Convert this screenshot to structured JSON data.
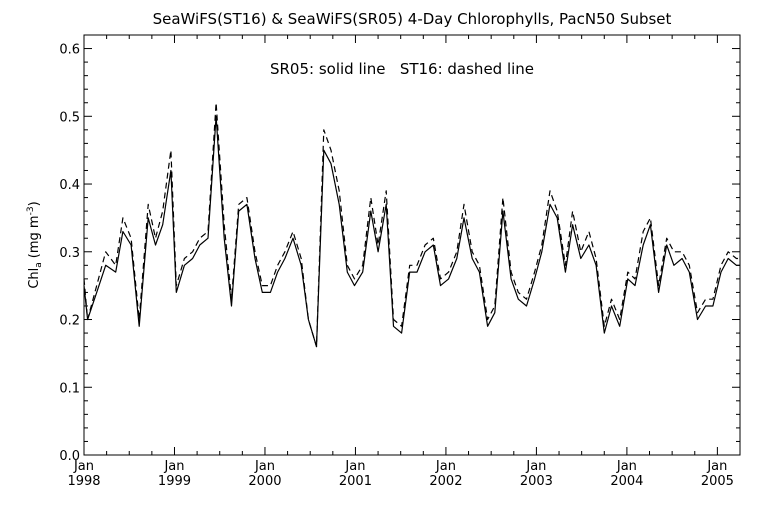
{
  "chart_data": {
    "type": "line",
    "title": "SeaWiFS(ST16) & SeaWiFS(SR05) 4-Day Chlorophylls, PacN50 Subset",
    "annotation": "SR05: solid line   ST16: dashed line",
    "ylabel_main": "Chl",
    "ylabel_sub": "a",
    "ylabel_units": "(mg m",
    "ylabel_exp": "-3",
    "ylabel_close": ")",
    "xlabel": "",
    "ylim": [
      0.0,
      0.62
    ],
    "xlim": [
      1998.0,
      2005.25
    ],
    "grid": false,
    "y_ticks": [
      0.0,
      0.1,
      0.2,
      0.3,
      0.4,
      0.5,
      0.6
    ],
    "y_tick_labels": [
      "0.0",
      "0.1",
      "0.2",
      "0.3",
      "0.4",
      "0.5",
      "0.6"
    ],
    "x_ticks": [
      1998,
      1999,
      2000,
      2001,
      2002,
      2003,
      2004,
      2005
    ],
    "x_tick_labels_month": [
      "Jan",
      "Jan",
      "Jan",
      "Jan",
      "Jan",
      "Jan",
      "Jan",
      "Jan"
    ],
    "x_tick_labels_year": [
      "1998",
      "1999",
      "2000",
      "2001",
      "2002",
      "2003",
      "2004",
      "2005"
    ],
    "series": [
      {
        "name": "SR05",
        "style": "solid",
        "x": [
          1998.0,
          1998.04,
          1998.14,
          1998.24,
          1998.35,
          1998.43,
          1998.52,
          1998.61,
          1998.71,
          1998.79,
          1998.87,
          1998.96,
          1999.02,
          1999.11,
          1999.2,
          1999.28,
          1999.37,
          1999.46,
          1999.55,
          1999.63,
          1999.71,
          1999.8,
          1999.89,
          1999.97,
          2000.06,
          2000.14,
          2000.22,
          2000.31,
          2000.4,
          2000.48,
          2000.57,
          2000.65,
          2000.73,
          2000.82,
          2000.91,
          2000.99,
          2001.08,
          2001.17,
          2001.25,
          2001.34,
          2001.42,
          2001.51,
          2001.6,
          2001.68,
          2001.77,
          2001.86,
          2001.94,
          2002.03,
          2002.12,
          2002.2,
          2002.29,
          2002.37,
          2002.46,
          2002.54,
          2002.63,
          2002.72,
          2002.8,
          2002.89,
          2002.98,
          2003.06,
          2003.15,
          2003.23,
          2003.32,
          2003.4,
          2003.49,
          2003.58,
          2003.66,
          2003.75,
          2003.83,
          2003.92,
          2004.01,
          2004.09,
          2004.18,
          2004.26,
          2004.35,
          2004.44,
          2004.52,
          2004.61,
          2004.69,
          2004.78,
          2004.87,
          2004.95,
          2005.04,
          2005.12,
          2005.21,
          2005.25
        ],
        "y": [
          0.25,
          0.2,
          0.24,
          0.28,
          0.27,
          0.33,
          0.31,
          0.19,
          0.35,
          0.31,
          0.34,
          0.42,
          0.24,
          0.28,
          0.29,
          0.31,
          0.32,
          0.5,
          0.32,
          0.22,
          0.36,
          0.37,
          0.29,
          0.24,
          0.24,
          0.27,
          0.29,
          0.32,
          0.28,
          0.2,
          0.16,
          0.45,
          0.43,
          0.37,
          0.27,
          0.25,
          0.27,
          0.36,
          0.3,
          0.37,
          0.19,
          0.18,
          0.27,
          0.27,
          0.3,
          0.31,
          0.25,
          0.26,
          0.29,
          0.35,
          0.29,
          0.27,
          0.19,
          0.21,
          0.36,
          0.26,
          0.23,
          0.22,
          0.26,
          0.3,
          0.37,
          0.35,
          0.27,
          0.34,
          0.29,
          0.31,
          0.28,
          0.18,
          0.22,
          0.19,
          0.26,
          0.25,
          0.31,
          0.34,
          0.24,
          0.31,
          0.28,
          0.29,
          0.27,
          0.2,
          0.22,
          0.22,
          0.27,
          0.29,
          0.28,
          0.28
        ]
      },
      {
        "name": "ST16",
        "style": "dashed",
        "x": [
          1998.0,
          1998.04,
          1998.14,
          1998.24,
          1998.35,
          1998.43,
          1998.52,
          1998.61,
          1998.71,
          1998.79,
          1998.87,
          1998.96,
          1999.02,
          1999.11,
          1999.2,
          1999.28,
          1999.37,
          1999.46,
          1999.55,
          1999.63,
          1999.71,
          1999.8,
          1999.89,
          1999.97,
          2000.06,
          2000.14,
          2000.22,
          2000.31,
          2000.4,
          2000.48,
          2000.57,
          2000.65,
          2000.73,
          2000.82,
          2000.91,
          2000.99,
          2001.08,
          2001.17,
          2001.25,
          2001.34,
          2001.42,
          2001.51,
          2001.6,
          2001.68,
          2001.77,
          2001.86,
          2001.94,
          2002.03,
          2002.12,
          2002.2,
          2002.29,
          2002.37,
          2002.46,
          2002.54,
          2002.63,
          2002.72,
          2002.8,
          2002.89,
          2002.98,
          2003.06,
          2003.15,
          2003.23,
          2003.32,
          2003.4,
          2003.49,
          2003.58,
          2003.66,
          2003.75,
          2003.83,
          2003.92,
          2004.01,
          2004.09,
          2004.18,
          2004.26,
          2004.35,
          2004.44,
          2004.52,
          2004.61,
          2004.69,
          2004.78,
          2004.87,
          2004.95,
          2005.04,
          2005.12,
          2005.21,
          2005.25
        ],
        "y": [
          0.26,
          0.2,
          0.25,
          0.3,
          0.28,
          0.35,
          0.32,
          0.2,
          0.37,
          0.32,
          0.36,
          0.45,
          0.25,
          0.29,
          0.3,
          0.32,
          0.33,
          0.52,
          0.34,
          0.23,
          0.37,
          0.38,
          0.3,
          0.25,
          0.25,
          0.28,
          0.3,
          0.33,
          0.29,
          0.2,
          0.16,
          0.48,
          0.45,
          0.39,
          0.28,
          0.26,
          0.28,
          0.38,
          0.31,
          0.39,
          0.2,
          0.19,
          0.28,
          0.28,
          0.31,
          0.32,
          0.26,
          0.27,
          0.3,
          0.37,
          0.3,
          0.28,
          0.2,
          0.22,
          0.38,
          0.27,
          0.24,
          0.23,
          0.27,
          0.31,
          0.39,
          0.36,
          0.28,
          0.36,
          0.3,
          0.33,
          0.29,
          0.19,
          0.23,
          0.2,
          0.27,
          0.26,
          0.33,
          0.35,
          0.25,
          0.32,
          0.3,
          0.3,
          0.28,
          0.21,
          0.23,
          0.23,
          0.28,
          0.3,
          0.29,
          0.29
        ]
      }
    ]
  }
}
